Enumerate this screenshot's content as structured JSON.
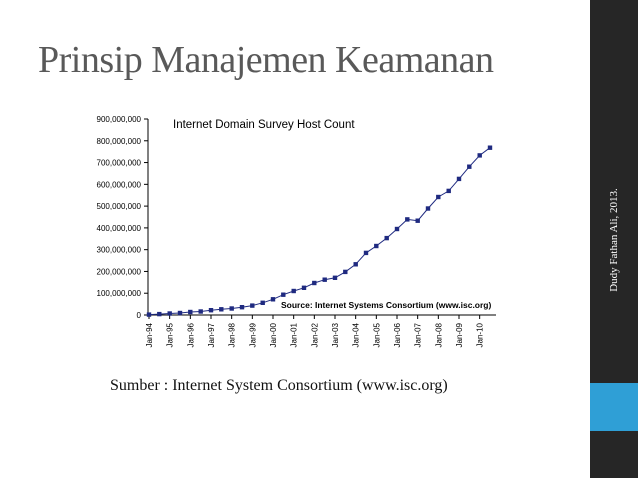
{
  "slide": {
    "title": "Prinsip Manajemen Keamanan",
    "side_text": "Dudy Fathan Ali, 2013.",
    "source": "Sumber : Internet System Consortium (www.isc.org)",
    "colors": {
      "sidebar": "#262626",
      "accent": "#2f9fd6",
      "series": "#1f2a80"
    }
  },
  "chart_data": {
    "type": "line",
    "title": "Internet Domain Survey Host Count",
    "annotation": "Source: Internet Systems Consortium (www.isc.org)",
    "xlabel": "",
    "ylabel": "",
    "ylim": [
      0,
      900000000
    ],
    "y_ticks": [
      0,
      100000000,
      200000000,
      300000000,
      400000000,
      500000000,
      600000000,
      700000000,
      800000000,
      900000000
    ],
    "y_tick_labels": [
      "0",
      "100,000,000",
      "200,000,000",
      "300,000,000",
      "400,000,000",
      "500,000,000",
      "600,000,000",
      "700,000,000",
      "800,000,000",
      "900,000,000"
    ],
    "x_tick_labels": [
      "Jan-94",
      "Jan-95",
      "Jan-96",
      "Jan-97",
      "Jan-98",
      "Jan-99",
      "Jan-00",
      "Jan-01",
      "Jan-02",
      "Jan-03",
      "Jan-04",
      "Jan-05",
      "Jan-06",
      "Jan-07",
      "Jan-08",
      "Jan-09",
      "Jan-10"
    ],
    "grid": false,
    "marker": "square",
    "series": [
      {
        "values": [
          2000000,
          4000000,
          7000000,
          9000000,
          14000000,
          16000000,
          22000000,
          26000000,
          30000000,
          36000000,
          43000000,
          56000000,
          72000000,
          93000000,
          110000000,
          125000000,
          147000000,
          162000000,
          171000000,
          198000000,
          233000000,
          285000000,
          317000000,
          353000000,
          395000000,
          439000000,
          433000000,
          489000000,
          542000000,
          570000000,
          625000000,
          681000000,
          733000000,
          768000000
        ]
      }
    ]
  }
}
